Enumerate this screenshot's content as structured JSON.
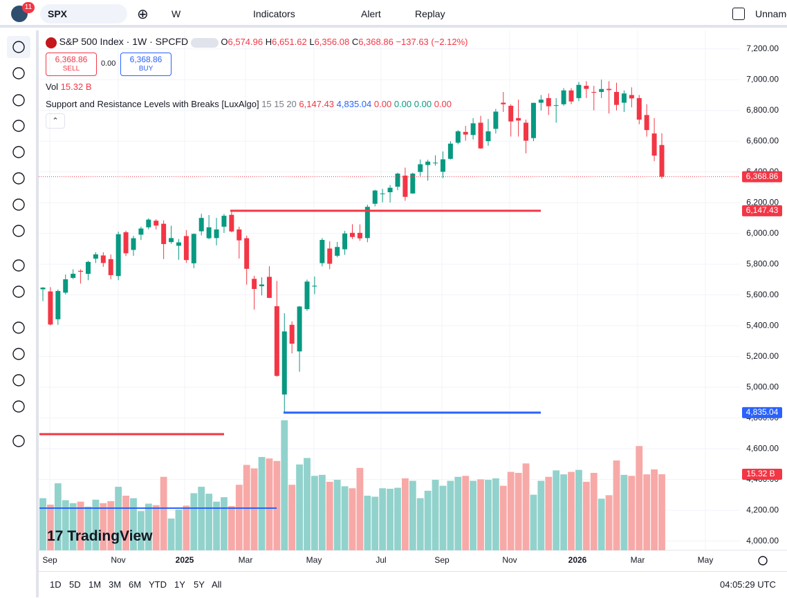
{
  "toolbar": {
    "badge": "11",
    "symbol": "SPX",
    "interval": "W",
    "indicators": "Indicators",
    "alert": "Alert",
    "replay": "Replay",
    "layout_name": "Unname"
  },
  "legend": {
    "name": "S&P 500 Index · 1W · SPCFD",
    "o_key": "O",
    "o": "6,574.96",
    "h_key": "H",
    "h": "6,651.62",
    "l_key": "L",
    "l": "6,356.08",
    "c_key": "C",
    "c": "6,368.86",
    "change": "−137.63 (−2.12%)",
    "sell_price": "6,368.86",
    "sell": "SELL",
    "spread": "0.00",
    "buy_price": "6,368.86",
    "buy": "BUY",
    "vol_key": "Vol",
    "vol": "15.32 B",
    "indicator": "Support and Resistance Levels with Breaks [LuxAlgo]",
    "indicator_args": "15 15 20",
    "ind_values": [
      "6,147.43",
      "4,835.04",
      "0.00",
      "0.00",
      "0.00",
      "0.00"
    ]
  },
  "watermark": "TradingView",
  "ranges": [
    "1D",
    "5D",
    "1M",
    "3M",
    "6M",
    "YTD",
    "1Y",
    "5Y",
    "All"
  ],
  "clock": "04:05:29 UTC",
  "chart_data": {
    "type": "candlestick",
    "up_color": "#089981",
    "down_color": "#f23645",
    "vol_up_color": "#92d2cc",
    "vol_down_color": "#f7a9a7",
    "grid": true,
    "open": [
      5637,
      5623,
      5442,
      5615,
      5711,
      5757,
      5737,
      5836,
      5857,
      5833,
      5723,
      6008,
      5893,
      5992,
      6040,
      6083,
      6063,
      5944,
      5920,
      5983,
      5806,
      6014,
      5969,
      5970,
      6044,
      6121,
      6026,
      5969,
      5705,
      5657,
      5718,
      5527,
      4953,
      5406,
      5233,
      5508,
      5655,
      5807,
      5902,
      5855,
      5897,
      6004,
      6004,
      5970,
      6193,
      6259,
      6268,
      6304,
      6376,
      6260,
      6400,
      6445,
      6457,
      6401,
      6485,
      6590,
      6660,
      6640,
      6720,
      6600,
      6680,
      6850,
      6830,
      6750,
      6720,
      6620,
      6850,
      6880,
      6830,
      6840,
      6930,
      6880,
      6960,
      6920,
      6920,
      6940,
      6920,
      6850,
      6900,
      6880,
      6770,
      6650,
      6574.96
    ],
    "high": [
      5651,
      5651,
      5636,
      5733,
      5767,
      5767,
      5822,
      5878,
      5878,
      5863,
      6012,
      6018,
      5985,
      6044,
      6099,
      6092,
      6085,
      6050,
      5964,
      6022,
      6000,
      6128,
      6120,
      6101,
      6127,
      6147,
      6044,
      5986,
      5725,
      5715,
      5787,
      5691,
      5481,
      5428,
      5528,
      5700,
      5720,
      5970,
      5949,
      5945,
      6017,
      6060,
      6059,
      6187,
      6284,
      6290,
      6315,
      6395,
      6428,
      6395,
      6481,
      6480,
      6508,
      6533,
      6600,
      6672,
      6699,
      6750,
      6765,
      6744,
      6810,
      6920,
      6840,
      6870,
      6740,
      6850,
      6900,
      6910,
      6880,
      6945,
      6945,
      6985,
      6990,
      6960,
      7000,
      6990,
      6980,
      6930,
      6950,
      6900,
      6840,
      6750,
      6651.62
    ],
    "low": [
      5560,
      5402,
      5406,
      5604,
      5703,
      5674,
      5696,
      5808,
      5783,
      5702,
      5696,
      5853,
      5854,
      5957,
      6027,
      6026,
      5833,
      5933,
      5829,
      5809,
      5774,
      5987,
      5962,
      5923,
      6003,
      6008,
      5837,
      5667,
      5505,
      5597,
      5580,
      5069,
      4835,
      5220,
      5101,
      5497,
      5605,
      5786,
      5768,
      5845,
      5861,
      5964,
      5952,
      5943,
      6176,
      6202,
      6201,
      6281,
      6212,
      6258,
      6372,
      6343,
      6441,
      6360,
      6481,
      6580,
      6603,
      6611,
      6550,
      6570,
      6650,
      6790,
      6630,
      6630,
      6521,
      6600,
      6800,
      6770,
      6720,
      6830,
      6840,
      6860,
      6880,
      6800,
      6880,
      6780,
      6800,
      6790,
      6820,
      6710,
      6630,
      6470,
      6356.08
    ],
    "close": [
      5648,
      5408,
      5626,
      5702,
      5738,
      5751,
      5815,
      5864,
      5808,
      5729,
      5995,
      5871,
      5969,
      6032,
      6090,
      6051,
      5931,
      5970,
      5942,
      5827,
      5997,
      6101,
      6040,
      6026,
      6115,
      6013,
      5955,
      5770,
      5639,
      5668,
      5581,
      5074,
      5363,
      5283,
      5525,
      5687,
      5660,
      5958,
      5803,
      5912,
      6000,
      5977,
      5968,
      6173,
      6279,
      6260,
      6297,
      6389,
      6238,
      6389,
      6450,
      6467,
      6460,
      6482,
      6584,
      6664,
      6643,
      6716,
      6553,
      6664,
      6792,
      6840,
      6728,
      6734,
      6603,
      6849,
      6870,
      6827,
      6834,
      6930,
      6858,
      6966,
      6940,
      6915,
      6939,
      6932,
      6836,
      6910,
      6878,
      6740,
      6672,
      6506,
      6368.86
    ],
    "volume": [
      10.5,
      9.2,
      13.5,
      10.1,
      9.5,
      9.8,
      8.8,
      10.2,
      9.5,
      9.9,
      12.8,
      11.0,
      10.5,
      7.9,
      9.4,
      9.1,
      14.8,
      6.4,
      8.2,
      9.0,
      11.5,
      12.8,
      11.4,
      9.8,
      10.7,
      8.9,
      13.2,
      17.2,
      16.5,
      18.8,
      18.5,
      18.0,
      26.2,
      13.2,
      17.3,
      18.6,
      15.0,
      15.2,
      13.8,
      14.2,
      12.9,
      12.5,
      16.6,
      11.0,
      10.8,
      12.5,
      12.4,
      12.6,
      14.5,
      14.0,
      10.5,
      12.0,
      14.2,
      13.0,
      14.0,
      14.8,
      15.0,
      14.0,
      14.3,
      14.2,
      14.5,
      13.0,
      15.8,
      15.6,
      17.5,
      11.2,
      14.0,
      14.8,
      16.1,
      15.3,
      15.8,
      16.2,
      13.8,
      15.6,
      10.4,
      11.1,
      18.1,
      15.2,
      15.0,
      21.0,
      15.3,
      16.3,
      15.32
    ],
    "volume_label": "15.32 B",
    "last": {
      "value": 6368.86,
      "label": "6,368.86",
      "color": "#f23645"
    },
    "levels": [
      {
        "value": 6147.43,
        "label": "6,147.43",
        "color": "#f23645"
      },
      {
        "value": 4835.04,
        "label": "4,835.04",
        "color": "#2962ff"
      }
    ],
    "ylim": [
      3940,
      7320
    ],
    "yticks": [
      {
        "value": 4000,
        "label": "4,000.00"
      },
      {
        "value": 4200,
        "label": "4,200.00"
      },
      {
        "value": 4400,
        "label": "4,400.00"
      },
      {
        "value": 4600,
        "label": "4,600.00"
      },
      {
        "value": 4800,
        "label": "4,800.00"
      },
      {
        "value": 5000,
        "label": "5,000.00"
      },
      {
        "value": 5200,
        "label": "5,200.00"
      },
      {
        "value": 5400,
        "label": "5,400.00"
      },
      {
        "value": 5600,
        "label": "5,600.00"
      },
      {
        "value": 5800,
        "label": "5,800.00"
      },
      {
        "value": 6000,
        "label": "6,000.00"
      },
      {
        "value": 6200,
        "label": "6,200.00"
      },
      {
        "value": 6400,
        "label": "6,400.00"
      },
      {
        "value": 6600,
        "label": "6,600.00"
      },
      {
        "value": 6800,
        "label": "6,800.00"
      },
      {
        "value": 7000,
        "label": "7,000.00"
      },
      {
        "value": 7200,
        "label": "7,200.00"
      }
    ],
    "xticks": [
      "Sep",
      "Nov",
      "2025",
      "Mar",
      "May",
      "Jul",
      "Sep",
      "Nov",
      "2026",
      "Mar",
      "May"
    ]
  }
}
